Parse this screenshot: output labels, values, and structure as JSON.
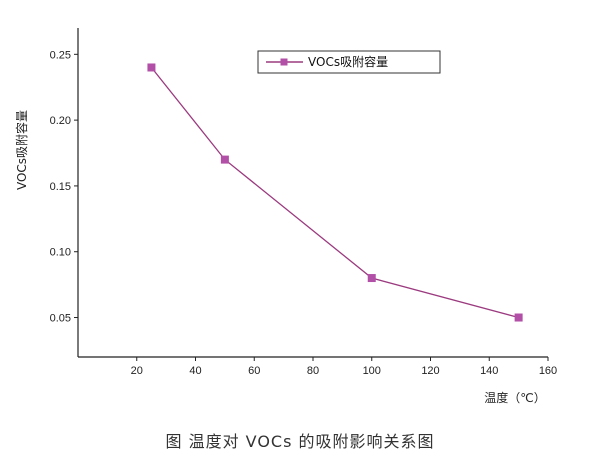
{
  "chart_data": {
    "type": "line",
    "title": "",
    "xlabel": "温度（℃）",
    "ylabel": "VOCs吸附容量",
    "xlim": [
      0,
      160
    ],
    "ylim": [
      0.02,
      0.27
    ],
    "xticks": [
      20,
      40,
      60,
      80,
      100,
      120,
      140,
      160
    ],
    "yticks": [
      0.05,
      0.1,
      0.15,
      0.2,
      0.25
    ],
    "grid": false,
    "legend_position": "top-right",
    "series": [
      {
        "name": "VOCs吸附容量",
        "color": "#9b3a7f",
        "marker_color": "#b24fa6",
        "x": [
          25,
          50,
          100,
          150
        ],
        "y": [
          0.24,
          0.17,
          0.08,
          0.05
        ]
      }
    ]
  },
  "caption": "图   温度对 VOCs 的吸附影响关系图"
}
